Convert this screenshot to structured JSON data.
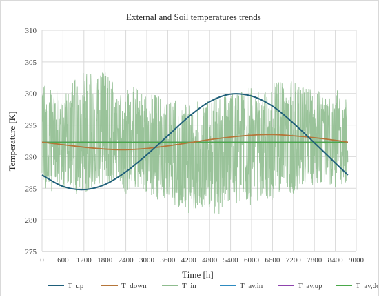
{
  "chart_data": {
    "type": "line",
    "title": "External and Soil temperatures trends",
    "xlabel": "Time [h]",
    "ylabel": "Temperature [K]",
    "xlim": [
      0,
      9000
    ],
    "ylim": [
      275,
      310
    ],
    "x_ticks": [
      "0",
      "600",
      "1200",
      "1800",
      "2400",
      "3000",
      "3600",
      "4200",
      "4800",
      "5400",
      "6000",
      "6600",
      "7200",
      "7800",
      "8400",
      "9000"
    ],
    "y_ticks": [
      "275",
      "280",
      "285",
      "290",
      "295",
      "300",
      "305",
      "310"
    ],
    "grid": true,
    "legend_position": "bottom",
    "series": [
      {
        "name": "T_up",
        "color": "#1f5f7a",
        "x": [
          0,
          600,
          1200,
          1800,
          2400,
          3000,
          3600,
          4200,
          4800,
          5400,
          6000,
          6600,
          7200,
          7800,
          8400,
          8760
        ],
        "y": [
          287.1,
          285.3,
          284.8,
          285.6,
          287.6,
          290.3,
          293.3,
          296.3,
          298.7,
          299.9,
          299.6,
          298.0,
          295.3,
          292.2,
          289.0,
          287.1
        ]
      },
      {
        "name": "T_down",
        "color": "#b5763a",
        "x": [
          0,
          600,
          1200,
          1800,
          2400,
          3000,
          3600,
          4200,
          4800,
          5400,
          6000,
          6600,
          7200,
          7800,
          8400,
          8760
        ],
        "y": [
          292.3,
          291.9,
          291.5,
          291.2,
          291.1,
          291.3,
          291.7,
          292.2,
          292.7,
          293.1,
          293.4,
          293.5,
          293.3,
          293.0,
          292.6,
          292.3
        ]
      },
      {
        "name": "T_in",
        "color": "#8fbc8f",
        "x": [
          0,
          300,
          600,
          900,
          1200,
          1500,
          1800,
          2100,
          2400,
          2700,
          3000,
          3300,
          3600,
          3900,
          4200,
          4500,
          4800,
          5100,
          5400,
          5700,
          6000,
          6300,
          6600,
          6900,
          7200,
          7500,
          7800,
          8100,
          8400,
          8760
        ],
        "y_min": [
          285,
          284.5,
          285,
          284,
          284,
          285,
          285,
          286,
          284,
          285,
          284,
          283,
          283,
          282,
          281,
          282,
          281,
          280.5,
          282,
          283,
          282,
          283,
          283,
          285,
          284,
          285,
          285.5,
          286,
          285,
          286
        ],
        "y_max": [
          302,
          301,
          300,
          302,
          304,
          303,
          303.5,
          302,
          301,
          301,
          300,
          300,
          299,
          299,
          298,
          299,
          299,
          300,
          300,
          301,
          301,
          300,
          302,
          302,
          302,
          301,
          301,
          300,
          301,
          300
        ]
      },
      {
        "name": "T_av,in",
        "color": "#2e8bc0",
        "x": [
          0,
          8760
        ],
        "y": [
          292.3,
          292.3
        ]
      },
      {
        "name": "T_av,up",
        "color": "#8e44ad",
        "x": [
          0,
          8760
        ],
        "y": [
          292.3,
          292.3
        ]
      },
      {
        "name": "T_av,down",
        "color": "#4aa84a",
        "x": [
          0,
          8760
        ],
        "y": [
          292.3,
          292.3
        ]
      }
    ]
  }
}
